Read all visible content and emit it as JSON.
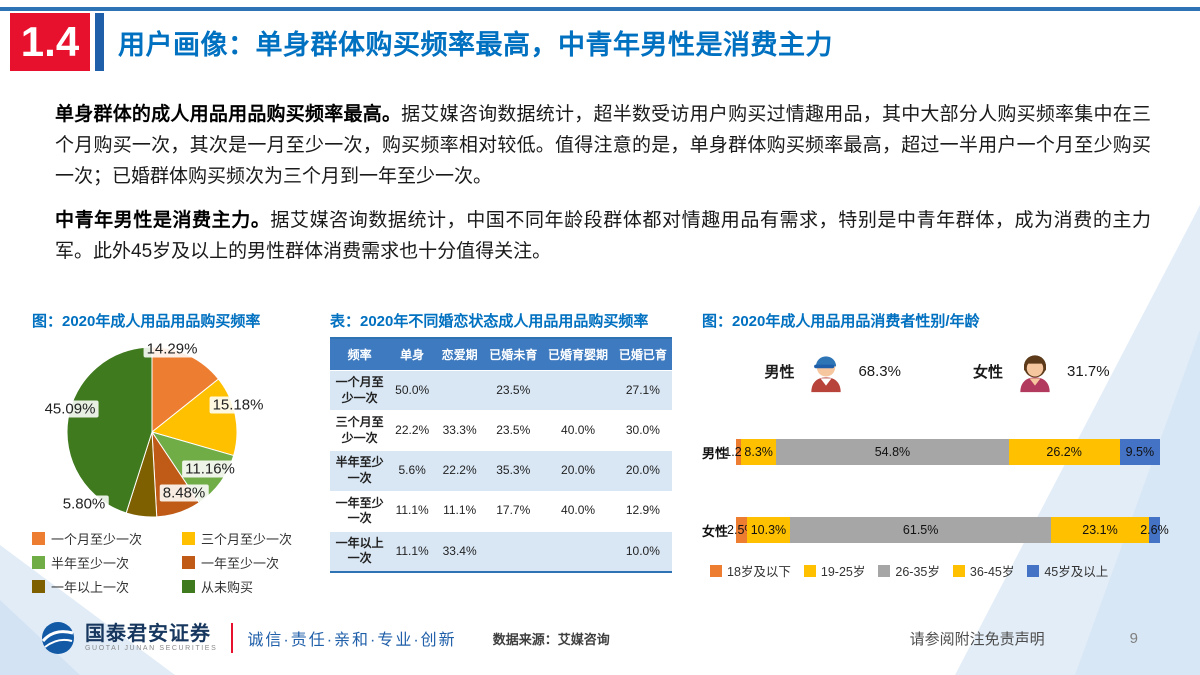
{
  "header": {
    "section_number": "1.4",
    "title": "用户画像：单身群体购买频率最高，中青年男性是消费主力"
  },
  "body": {
    "p1_lead": "单身群体的成人用品用品购买频率最高。",
    "p1_rest": "据艾媒咨询数据统计，超半数受访用户购买过情趣用品，其中大部分人购买频率集中在三个月购买一次，其次是一月至少一次，购买频率相对较低。值得注意的是，单身群体购买频率最高，超过一半用户一个月至少购买一次；已婚群体购买频次为三个月到一年至少一次。",
    "p2_lead": "中青年男性是消费主力。",
    "p2_rest": "据艾媒咨询数据统计，中国不同年龄段群体都对情趣用品有需求，特别是中青年群体，成为消费的主力军。此外45岁及以上的男性群体消费需求也十分值得关注。"
  },
  "sections": {
    "pie_title": "图：2020年成人用品用品购买频率",
    "table_title": "表：2020年不同婚恋状态成人用品用品购买频率",
    "gender_title": "图：2020年成人用品用品消费者性别/年龄"
  },
  "gender_summary": {
    "male_label": "男性",
    "male_value": "68.3%",
    "female_label": "女性",
    "female_value": "31.7%"
  },
  "footer": {
    "brand": "国泰君安证券",
    "brand_sub": "GUOTAI JUNAN SECURITIES",
    "motto": "诚信·责任·亲和·专业·创新",
    "source": "数据来源：艾媒咨询",
    "disclaimer": "请参阅附注免责声明",
    "page_number": "9"
  },
  "chart_data": [
    {
      "type": "pie",
      "title": "图：2020年成人用品用品购买频率",
      "categories": [
        "一个月至少一次",
        "三个月至少一次",
        "半年至少一次",
        "一年至少一次",
        "一年以上一次",
        "从未购买"
      ],
      "values": [
        14.29,
        15.18,
        11.16,
        8.48,
        5.8,
        45.09
      ],
      "colors": [
        "#ED7D31",
        "#FFC000",
        "#70AD47",
        "#BF5B17",
        "#7F6000",
        "#3F7A1E"
      ],
      "legend_position": "bottom"
    },
    {
      "type": "table",
      "title": "表：2020年不同婚恋状态成人用品用品购买频率",
      "columns": [
        "频率",
        "单身",
        "恋爱期",
        "已婚未育",
        "已婚育婴期",
        "已婚已育"
      ],
      "rows": [
        [
          "一个月至少一次",
          "50.0%",
          "",
          "23.5%",
          "",
          "27.1%"
        ],
        [
          "三个月至少一次",
          "22.2%",
          "33.3%",
          "23.5%",
          "40.0%",
          "30.0%"
        ],
        [
          "半年至少一次",
          "5.6%",
          "22.2%",
          "35.3%",
          "20.0%",
          "20.0%"
        ],
        [
          "一年至少一次",
          "11.1%",
          "11.1%",
          "17.7%",
          "40.0%",
          "12.9%"
        ],
        [
          "一年以上一次",
          "11.1%",
          "33.4%",
          "",
          "",
          "10.0%"
        ]
      ]
    },
    {
      "type": "bar",
      "subtype": "stacked-horizontal",
      "title": "图：2020年成人用品用品消费者性别/年龄",
      "gender_split": {
        "男性": 68.3,
        "女性": 31.7
      },
      "age_groups": [
        "18岁及以下",
        "19-25岁",
        "26-35岁",
        "36-45岁",
        "45岁及以上"
      ],
      "colors": [
        "#ED7D31",
        "#FFC000",
        "#A6A6A6",
        "#FFC000",
        "#4472C4"
      ],
      "series": [
        {
          "name": "男性",
          "values": [
            1.2,
            8.3,
            54.8,
            26.2,
            9.5
          ]
        },
        {
          "name": "女性",
          "values": [
            2.5,
            10.3,
            61.5,
            23.1,
            2.6
          ]
        }
      ],
      "xlim": [
        0,
        100
      ]
    }
  ]
}
